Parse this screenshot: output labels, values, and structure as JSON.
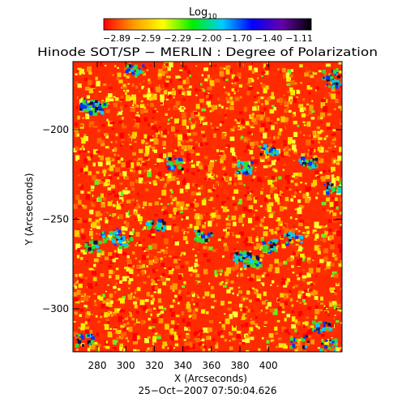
{
  "colorbar": {
    "label_main": "Log",
    "label_sub": "10",
    "ticks": [
      "−2.89",
      "−2.59",
      "−2.29",
      "−2.00",
      "−1.70",
      "−1.40",
      "−1.11"
    ],
    "colormap": [
      "#ff0000",
      "#ff9900",
      "#ffff00",
      "#00ee00",
      "#00ccff",
      "#0000ff",
      "#6600aa",
      "#000000"
    ]
  },
  "title": "Hinode SOT/SP − MERLIN : Degree of Polarization",
  "x_axis": {
    "label": "X (Arcseconds)",
    "ticks": [
      "280",
      "300",
      "320",
      "340",
      "360",
      "380",
      "400"
    ]
  },
  "y_axis": {
    "label": "Y (Arcseconds)",
    "ticks": [
      "−200",
      "−250",
      "−300"
    ]
  },
  "timestamp": "25−Oct−2007 07:50:04.626"
}
